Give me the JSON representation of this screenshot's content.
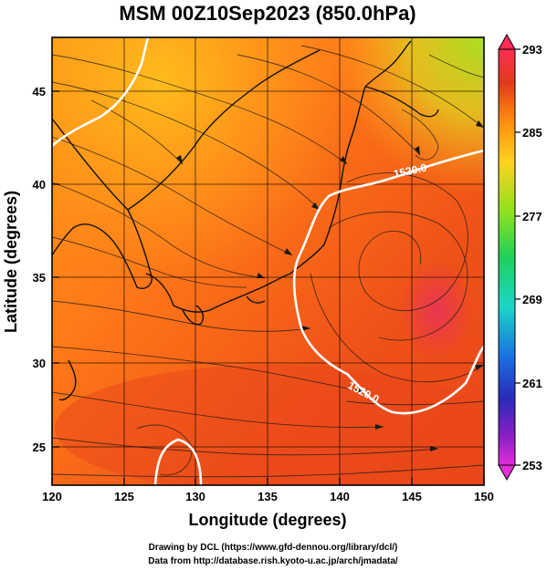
{
  "map": {
    "title": "MSM 00Z10Sep2023 (850.0hPa)",
    "xlabel": "Longitude (degrees)",
    "ylabel": "Latitude  (degrees)",
    "lon_range": [
      120,
      150
    ],
    "lat_range": [
      22.5,
      47.6
    ],
    "lon_ticks": [
      "120",
      "125",
      "130",
      "135",
      "140",
      "145",
      "150"
    ],
    "lat_ticks": [
      "25",
      "30",
      "35",
      "40",
      "45"
    ],
    "colorbar": {
      "min": 253,
      "max": 293,
      "ticks": [
        "293",
        "285",
        "277",
        "269",
        "261",
        "253"
      ],
      "colors": [
        "#ff2d55",
        "#e03a1a",
        "#ff8a10",
        "#ffd21c",
        "#8fe21e",
        "#1fd05a",
        "#1ad6c8",
        "#1a6fe0",
        "#2a2ab8",
        "#8a1fc4",
        "#e12ed8"
      ]
    },
    "contours": [
      {
        "label": "1520.0"
      },
      {
        "label": "1520.0"
      }
    ]
  },
  "credits": {
    "line1": "Drawing by DCL (https://www.gfd-dennou.org/library/dcl/)",
    "line2": "Data from http://database.rish.kyoto-u.ac.jp/arch/jmadata/"
  }
}
